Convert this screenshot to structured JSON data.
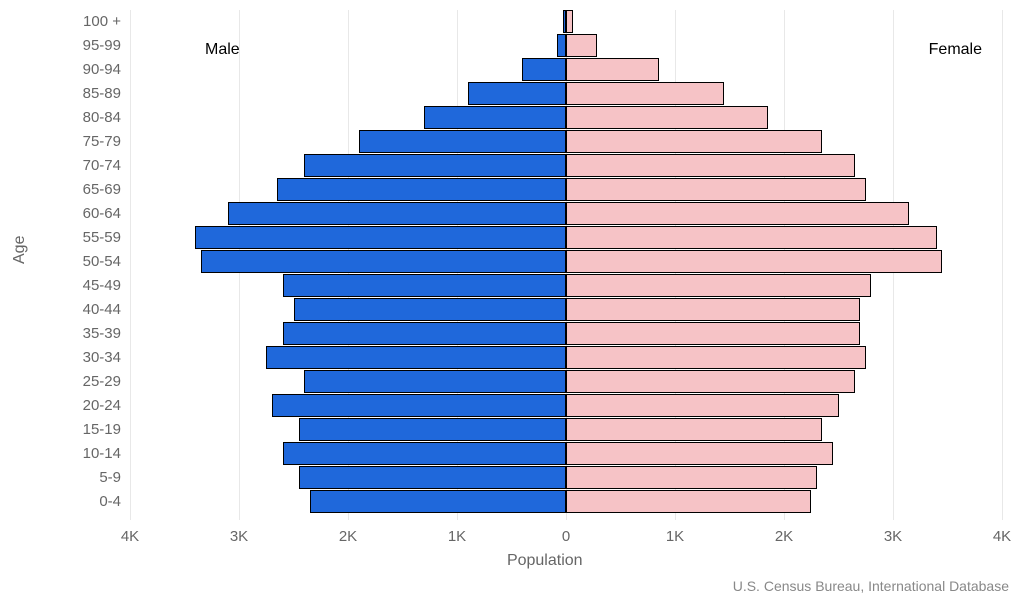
{
  "chart": {
    "type": "population-pyramid",
    "y_axis_title": "Age",
    "x_axis_title": "Population",
    "source_text": "U.S. Census Bureau, International Database",
    "male_label": "Male",
    "female_label": "Female",
    "male_color": "#1f68db",
    "female_color": "#f6c3c6",
    "bar_border_color": "#000000",
    "grid_color": "#e8e8e8",
    "background_color": "#ffffff",
    "text_color": "#666666",
    "label_fontsize": 15,
    "title_fontsize": 16,
    "x_max": 4000,
    "x_ticks": [
      4000,
      3000,
      2000,
      1000,
      0,
      1000,
      2000,
      3000,
      4000
    ],
    "x_tick_labels": [
      "4K",
      "3K",
      "2K",
      "1K",
      "0",
      "1K",
      "2K",
      "3K",
      "4K"
    ],
    "age_groups": [
      {
        "label": "100 +",
        "male": 30,
        "female": 60
      },
      {
        "label": "95-99",
        "male": 80,
        "female": 280
      },
      {
        "label": "90-94",
        "male": 400,
        "female": 850
      },
      {
        "label": "85-89",
        "male": 900,
        "female": 1450
      },
      {
        "label": "80-84",
        "male": 1300,
        "female": 1850
      },
      {
        "label": "75-79",
        "male": 1900,
        "female": 2350
      },
      {
        "label": "70-74",
        "male": 2400,
        "female": 2650
      },
      {
        "label": "65-69",
        "male": 2650,
        "female": 2750
      },
      {
        "label": "60-64",
        "male": 3100,
        "female": 3150
      },
      {
        "label": "55-59",
        "male": 3400,
        "female": 3400
      },
      {
        "label": "50-54",
        "male": 3350,
        "female": 3450
      },
      {
        "label": "45-49",
        "male": 2600,
        "female": 2800
      },
      {
        "label": "40-44",
        "male": 2500,
        "female": 2700
      },
      {
        "label": "35-39",
        "male": 2600,
        "female": 2700
      },
      {
        "label": "30-34",
        "male": 2750,
        "female": 2750
      },
      {
        "label": "25-29",
        "male": 2400,
        "female": 2650
      },
      {
        "label": "20-24",
        "male": 2700,
        "female": 2500
      },
      {
        "label": "15-19",
        "male": 2450,
        "female": 2350
      },
      {
        "label": "10-14",
        "male": 2600,
        "female": 2450
      },
      {
        "label": "5-9",
        "male": 2450,
        "female": 2300
      },
      {
        "label": "0-4",
        "male": 2350,
        "female": 2250
      }
    ]
  }
}
